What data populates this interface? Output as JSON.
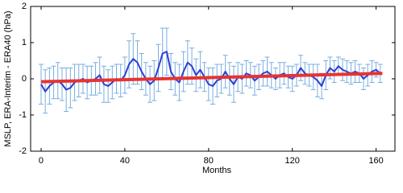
{
  "chart_data": {
    "type": "line",
    "xlabel": "Months",
    "ylabel": "MSLP, ERA-Interim - ERA40 (hPa)",
    "xlim": [
      -5,
      169
    ],
    "ylim": [
      -2,
      2
    ],
    "xticks": [
      0,
      40,
      80,
      120,
      160
    ],
    "yticks": [
      -2,
      -1,
      0,
      1,
      2
    ],
    "errorbar_color": "#7aaee0",
    "series": [
      {
        "color": "#2a3fd6",
        "x": [
          0,
          2,
          4,
          6,
          8,
          10,
          12,
          14,
          16,
          18,
          20,
          22,
          24,
          26,
          28,
          30,
          32,
          34,
          36,
          38,
          40,
          42,
          44,
          46,
          48,
          50,
          52,
          54,
          56,
          58,
          60,
          62,
          64,
          66,
          68,
          70,
          72,
          74,
          76,
          78,
          80,
          82,
          84,
          86,
          88,
          90,
          92,
          94,
          96,
          98,
          100,
          102,
          104,
          106,
          108,
          110,
          112,
          114,
          116,
          118,
          120,
          122,
          124,
          126,
          128,
          130,
          132,
          134,
          136,
          138,
          140,
          142,
          144,
          146,
          148,
          150,
          152,
          154,
          156,
          158,
          160,
          162
        ],
        "values": [
          -0.15,
          -0.35,
          -0.2,
          -0.1,
          -0.05,
          -0.15,
          -0.3,
          -0.25,
          -0.1,
          -0.05,
          0.0,
          -0.1,
          -0.05,
          0.0,
          0.1,
          -0.15,
          -0.2,
          -0.1,
          0.0,
          -0.05,
          0.1,
          0.4,
          0.55,
          0.45,
          0.2,
          0.0,
          -0.15,
          -0.05,
          0.3,
          0.7,
          0.75,
          0.2,
          0.0,
          -0.1,
          0.2,
          0.45,
          0.35,
          0.1,
          0.25,
          0.05,
          -0.15,
          -0.2,
          -0.05,
          0.0,
          0.2,
          0.0,
          -0.15,
          0.05,
          0.0,
          0.15,
          0.1,
          -0.05,
          0.05,
          0.15,
          0.2,
          0.1,
          0.0,
          0.1,
          0.15,
          0.05,
          0.0,
          0.1,
          0.3,
          0.15,
          0.1,
          0.05,
          -0.05,
          -0.2,
          0.1,
          0.3,
          0.2,
          0.35,
          0.25,
          0.2,
          0.15,
          0.2,
          0.15,
          0.0,
          0.1,
          0.2,
          0.25,
          0.15
        ],
        "errors": [
          0.55,
          0.6,
          0.5,
          0.45,
          0.5,
          0.45,
          0.6,
          0.55,
          0.5,
          0.45,
          0.4,
          0.45,
          0.4,
          0.45,
          0.5,
          0.5,
          0.45,
          0.45,
          0.4,
          0.45,
          0.5,
          0.65,
          0.7,
          0.6,
          0.5,
          0.45,
          0.5,
          0.55,
          0.65,
          0.7,
          0.65,
          0.5,
          0.45,
          0.5,
          0.55,
          0.6,
          0.5,
          0.45,
          0.5,
          0.4,
          0.45,
          0.5,
          0.45,
          0.4,
          0.45,
          0.45,
          0.5,
          0.4,
          0.4,
          0.35,
          0.35,
          0.4,
          0.35,
          0.35,
          0.4,
          0.35,
          0.3,
          0.35,
          0.3,
          0.3,
          0.35,
          0.3,
          0.35,
          0.3,
          0.3,
          0.35,
          0.45,
          0.35,
          0.4,
          0.3,
          0.3,
          0.25,
          0.3,
          0.3,
          0.3,
          0.3,
          0.25,
          0.3,
          0.3,
          0.3,
          0.2,
          0.25
        ]
      },
      {
        "color": "#e8332f",
        "x": [
          0,
          163
        ],
        "values": [
          -0.08,
          0.15
        ]
      }
    ]
  }
}
